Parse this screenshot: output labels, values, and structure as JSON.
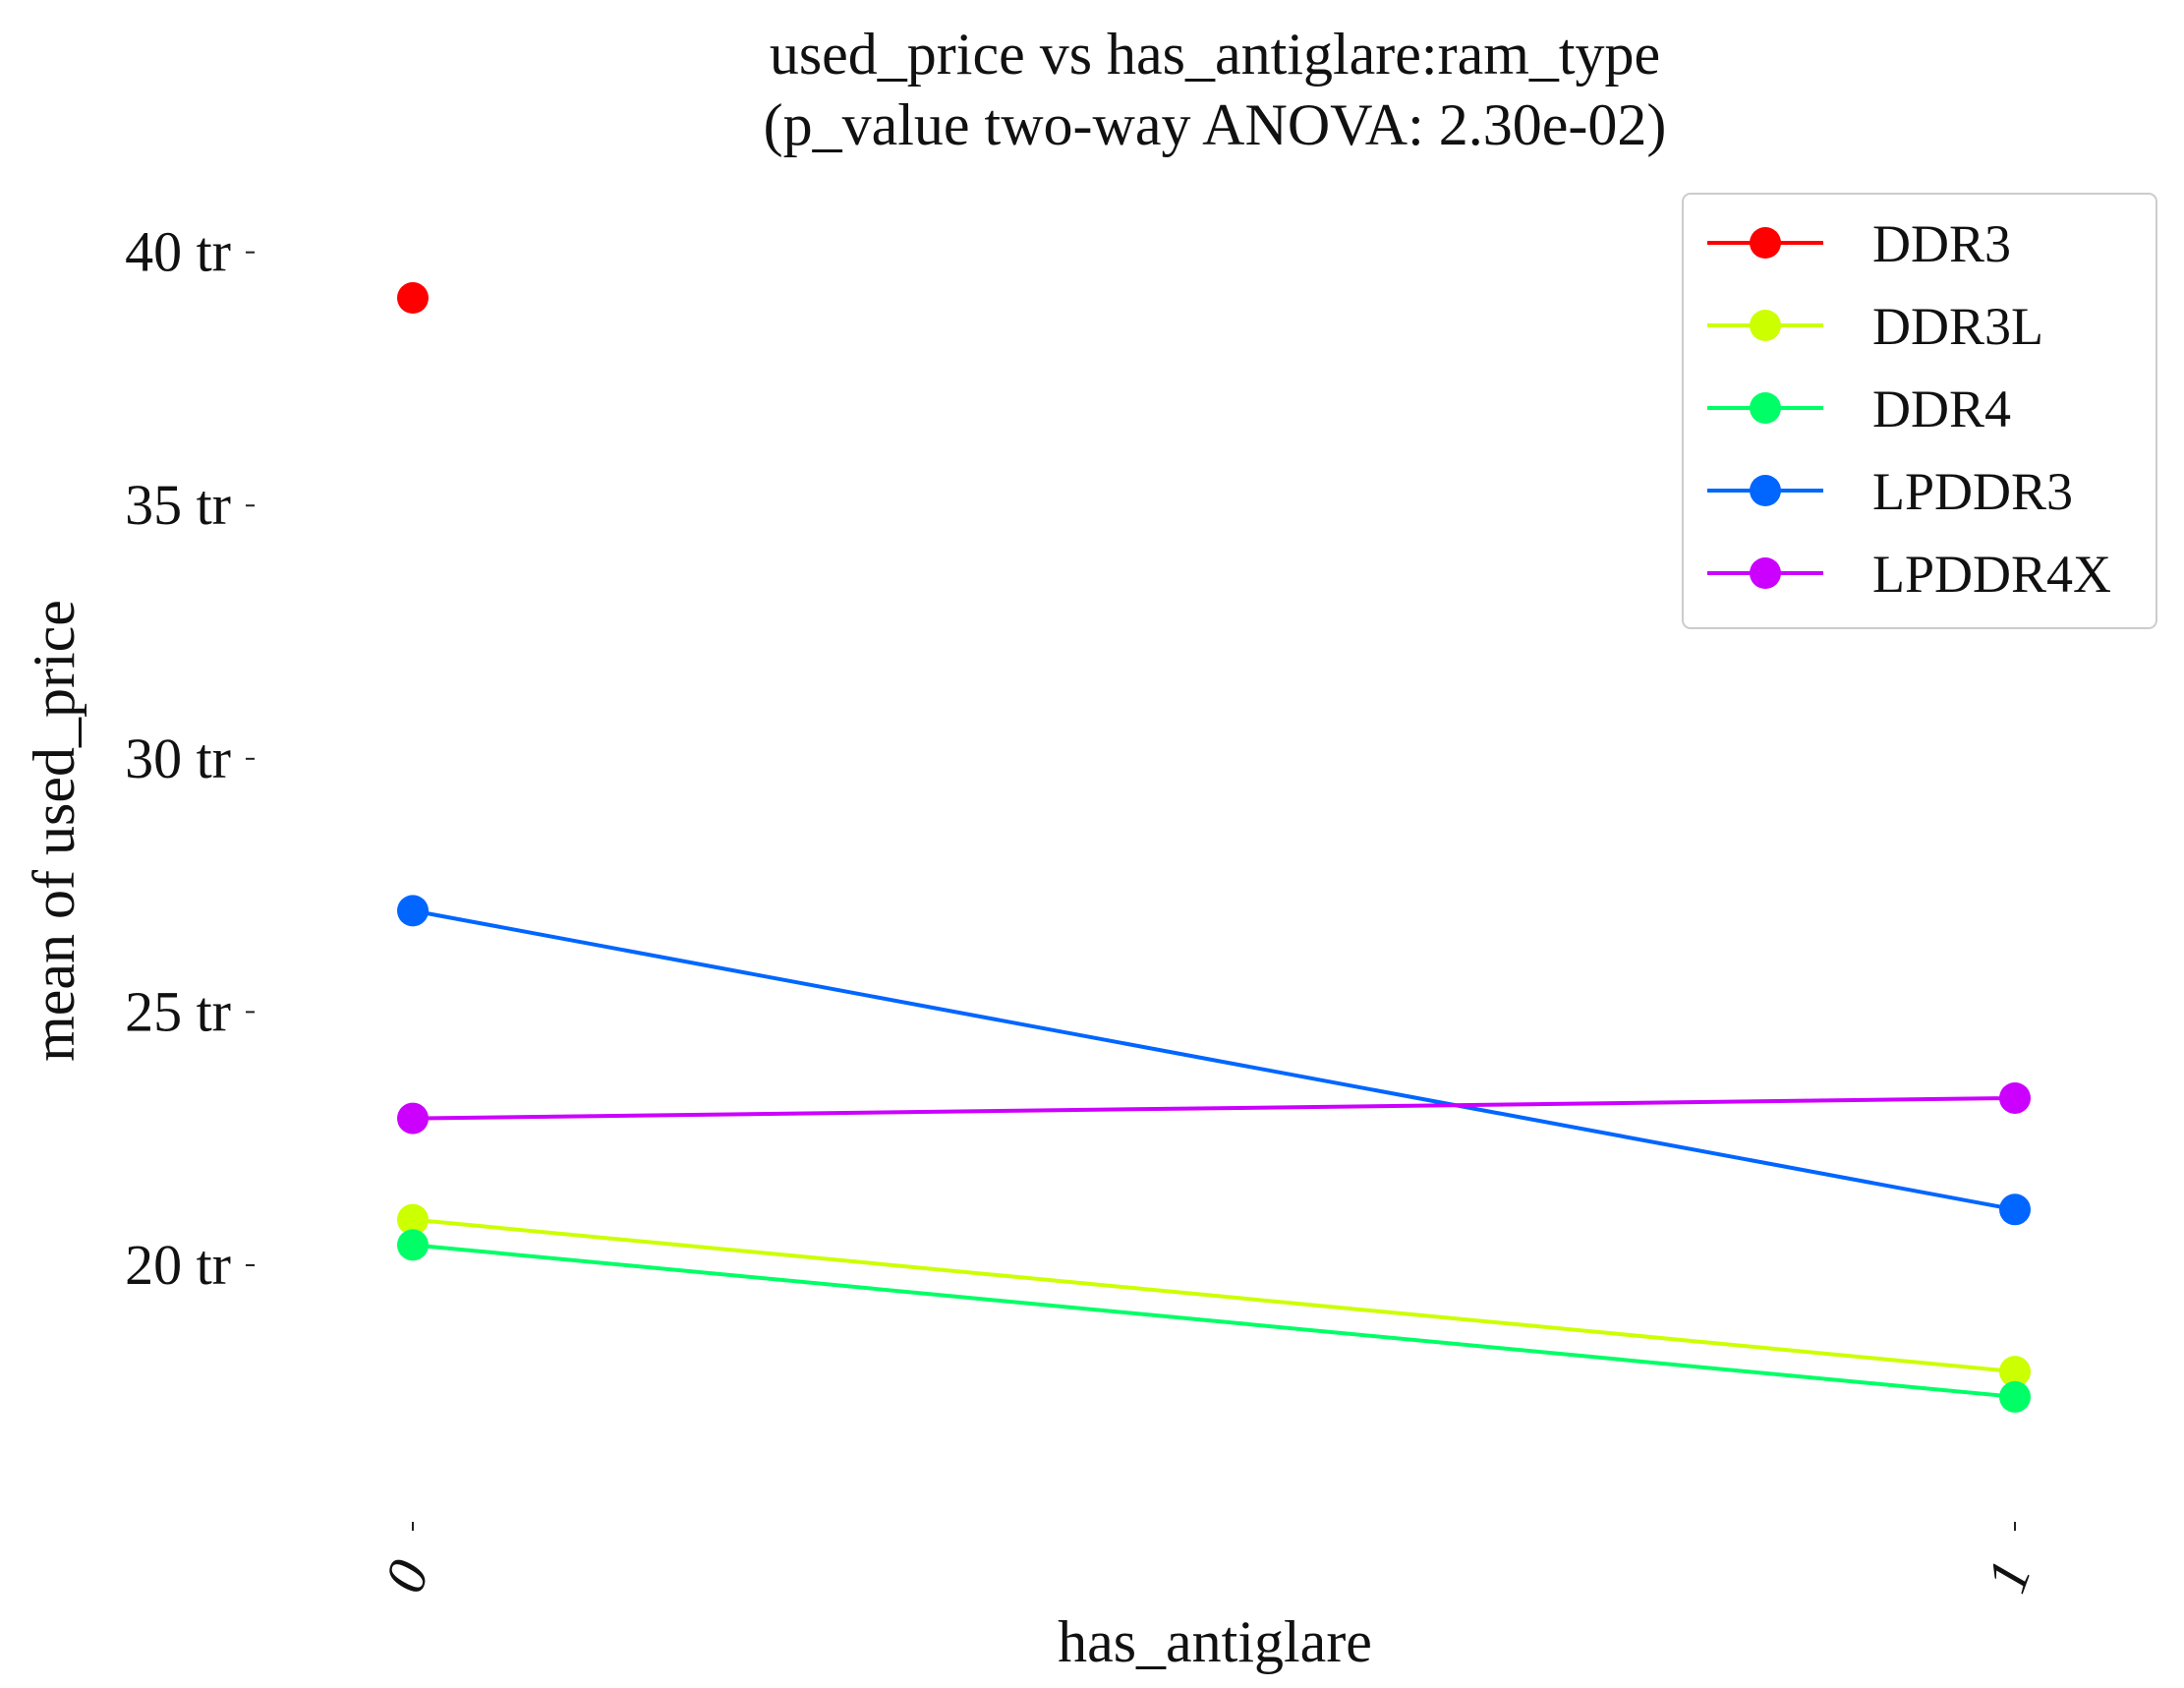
{
  "chart_data": {
    "type": "line",
    "title": "used_price vs has_antiglare:ram_type",
    "subtitle": "(p_value two-way ANOVA: 2.30e-02)",
    "xlabel": "has_antiglare",
    "ylabel": "mean of used_price",
    "categories": [
      "0",
      "1"
    ],
    "yticks": [
      20,
      25,
      30,
      35,
      40
    ],
    "ytick_labels": [
      "20 tr",
      "25 tr",
      "30 tr",
      "35 tr",
      "40 tr"
    ],
    "ylim": [
      14.7,
      41.1
    ],
    "grid": false,
    "legend_position": "top-right",
    "series": [
      {
        "name": "DDR3",
        "color": "#ff0000",
        "values": [
          39.1,
          null
        ]
      },
      {
        "name": "DDR3L",
        "color": "#ccff00",
        "values": [
          20.9,
          17.9
        ]
      },
      {
        "name": "DDR4",
        "color": "#00ff66",
        "values": [
          20.4,
          17.4
        ]
      },
      {
        "name": "LPDDR3",
        "color": "#0066ff",
        "values": [
          27.0,
          21.1
        ]
      },
      {
        "name": "LPDDR4X",
        "color": "#cc00ff",
        "values": [
          22.9,
          23.3
        ]
      }
    ]
  }
}
